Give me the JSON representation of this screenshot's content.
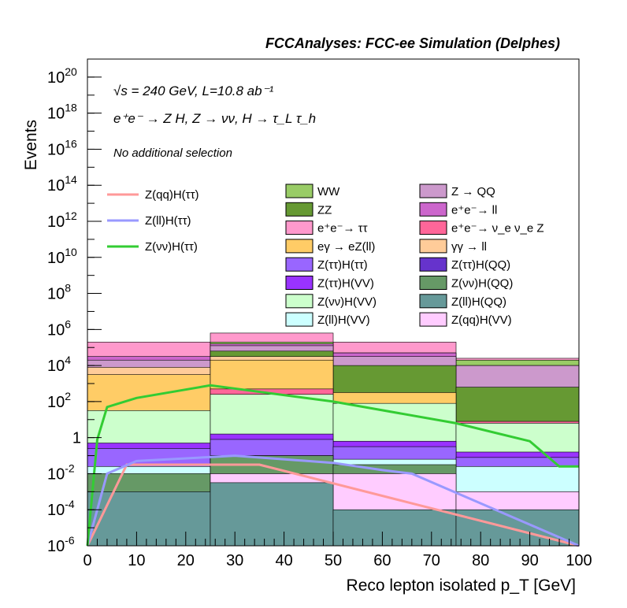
{
  "chart_data": {
    "type": "area",
    "title": "FCCAnalyses: FCC-ee Simulation (Delphes)",
    "annotations": [
      "√s = 240 GeV, L=10.8 ab⁻¹",
      "e⁺e⁻ → Z H, Z → νν, H → τ_L τ_h",
      "No additional selection"
    ],
    "xlabel": "Reco lepton isolated p_T [GeV]",
    "ylabel": "Events",
    "xlim": [
      0,
      100
    ],
    "ylim": [
      1e-06,
      1e+21
    ],
    "yscale": "log",
    "x_ticks": [
      "0",
      "10",
      "20",
      "30",
      "40",
      "50",
      "60",
      "70",
      "80",
      "90",
      "100"
    ],
    "y_ticks": [
      {
        "value": 1e-06,
        "base": "10",
        "exp": "-6"
      },
      {
        "value": 0.0001,
        "base": "10",
        "exp": "-4"
      },
      {
        "value": 0.01,
        "base": "10",
        "exp": "-2"
      },
      {
        "value": 1,
        "base": "1",
        "exp": ""
      },
      {
        "value": 100.0,
        "base": "10",
        "exp": "2"
      },
      {
        "value": 10000.0,
        "base": "10",
        "exp": "4"
      },
      {
        "value": 1000000.0,
        "base": "10",
        "exp": "6"
      },
      {
        "value": 100000000.0,
        "base": "10",
        "exp": "8"
      },
      {
        "value": 10000000000.0,
        "base": "10",
        "exp": "10"
      },
      {
        "value": 1000000000000.0,
        "base": "10",
        "exp": "12"
      },
      {
        "value": 100000000000000.0,
        "base": "10",
        "exp": "14"
      },
      {
        "value": 1e+16,
        "base": "10",
        "exp": "16"
      },
      {
        "value": 1e+18,
        "base": "10",
        "exp": "18"
      },
      {
        "value": 1e+20,
        "base": "10",
        "exp": "20"
      }
    ],
    "grid": false,
    "legend_position": "top",
    "stacked_bins": {
      "x": [
        0,
        25,
        50,
        75,
        100
      ],
      "note": "cumulative stack tops, log10(Events)"
    },
    "stack_series": [
      {
        "name": "WW",
        "color": "#99cc66",
        "log_top": [
          4.4,
          5.3,
          4.7,
          4.3,
          3.7
        ]
      },
      {
        "name": "Z → QQ",
        "color": "#cc99cc",
        "log_top": [
          4.3,
          5.1,
          4.5,
          4.0,
          3.2
        ]
      },
      {
        "name": "e⁺e⁻→ ττ",
        "color": "#ff99cc",
        "log_top": [
          5.3,
          5.8,
          5.3,
          4.4,
          3.5
        ]
      },
      {
        "name": "e⁺e⁻→ ll",
        "color": "#cc66cc",
        "log_top": [
          4.5,
          5.2,
          4.7,
          4.0,
          2.4
        ]
      },
      {
        "name": "ZZ",
        "color": "#669933",
        "log_top": [
          3.7,
          4.8,
          4.0,
          2.8,
          2.2
        ]
      },
      {
        "name": "e⁺e⁻→ ν_e ν_e Z",
        "color": "#ff6699",
        "log_top": [
          0.0,
          2.7,
          1.8,
          0.9,
          0.3
        ]
      },
      {
        "name": "eγ → eZ(ll)",
        "color": "#ffcc66",
        "log_top": [
          3.5,
          4.3,
          2.5,
          0.5,
          0.0
        ]
      },
      {
        "name": "γγ → ll",
        "color": "#ffcc99",
        "log_top": [
          3.9,
          4.5,
          2.4,
          0.6,
          0.0
        ]
      },
      {
        "name": "Z(νν)H(VV)",
        "color": "#ccffcc",
        "log_top": [
          1.5,
          2.4,
          1.9,
          0.8,
          0.2
        ]
      },
      {
        "name": "Z(ll)H(VV)",
        "color": "#ccffff",
        "log_top": [
          -1.6,
          -1.0,
          -1.2,
          -1.6,
          -2.2
        ]
      },
      {
        "name": "Z(ττ)H(VV)",
        "color": "#9933ff",
        "log_top": [
          -0.3,
          0.2,
          -0.2,
          -0.8,
          -1.5
        ]
      },
      {
        "name": "Z(ττ)H(ττ)",
        "color": "#9966ff",
        "log_top": [
          -0.6,
          -0.1,
          -0.5,
          -1.1,
          -1.8
        ]
      },
      {
        "name": "Z(ττ)H(QQ)",
        "color": "#6633cc",
        "log_top": [
          -3.0,
          -2.0,
          -4.0,
          -3.0,
          -4.0
        ]
      },
      {
        "name": "Z(νν)H(QQ)",
        "color": "#669966",
        "log_top": [
          -2.0,
          -1.0,
          -1.5,
          -3.0,
          -3.0
        ]
      },
      {
        "name": "Z(ll)H(QQ)",
        "color": "#669999",
        "log_top": [
          -3.0,
          -2.5,
          -4.0,
          -4.0,
          -4.0
        ]
      },
      {
        "name": "Z(qq)H(VV)",
        "color": "#ffccff",
        "log_top": [
          -3.0,
          -2.0,
          -2.0,
          -3.0,
          -4.0
        ]
      }
    ],
    "line_series": [
      {
        "name": "Z(qq)H(ττ)",
        "color": "#ff9999",
        "points": [
          [
            0,
            -6.0
          ],
          [
            8,
            -1.5
          ],
          [
            12,
            -1.5
          ],
          [
            25,
            -1.5
          ],
          [
            35,
            -1.5
          ],
          [
            100,
            -6.0
          ]
        ]
      },
      {
        "name": "Z(ll)H(ττ)",
        "color": "#9999ff",
        "points": [
          [
            0,
            -6.0
          ],
          [
            4,
            -2.0
          ],
          [
            10,
            -1.3
          ],
          [
            30,
            -1.0
          ],
          [
            50,
            -1.4
          ],
          [
            60,
            -1.8
          ],
          [
            66,
            -2.0
          ],
          [
            100,
            -6.0
          ]
        ]
      },
      {
        "name": "Z(νν)H(ττ)",
        "color": "#33cc33",
        "points": [
          [
            0,
            -6.0
          ],
          [
            2,
            -0.1
          ],
          [
            4,
            1.7
          ],
          [
            10,
            2.2
          ],
          [
            25,
            2.9
          ],
          [
            50,
            2.0
          ],
          [
            75,
            0.8
          ],
          [
            90,
            -0.2
          ],
          [
            96,
            -1.6
          ],
          [
            100,
            -1.6
          ]
        ]
      }
    ]
  }
}
